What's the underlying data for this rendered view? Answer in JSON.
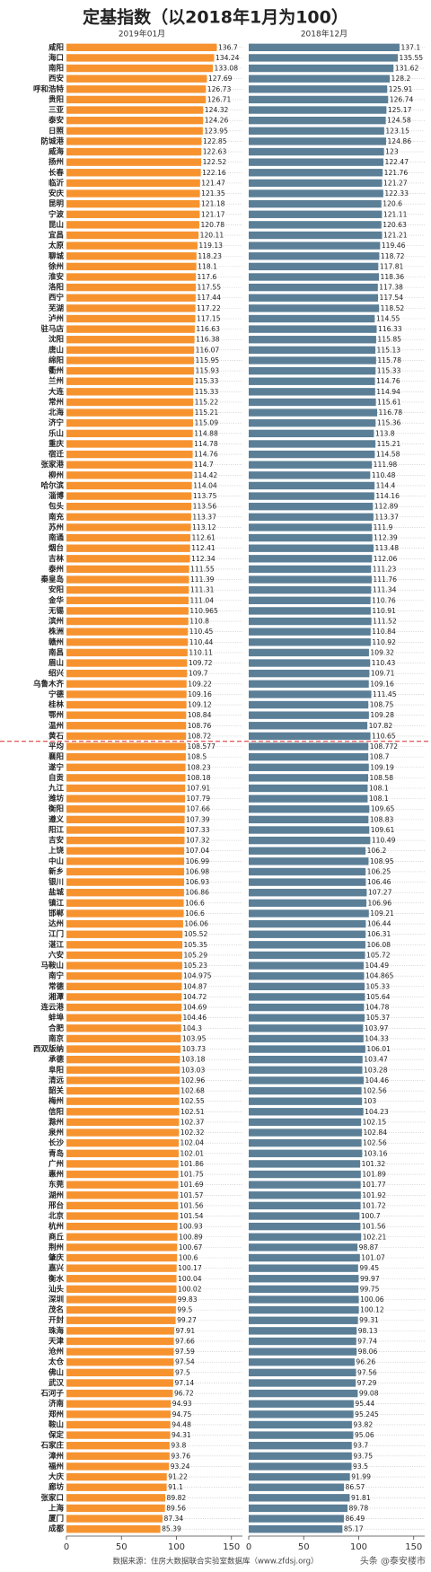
{
  "chart_data": {
    "type": "bar",
    "orientation": "horizontal",
    "title": "定基指数（以2018年1月为100）",
    "source": "数据来源：住房大数据联合实验室数据库（www.zfdsj.org）",
    "watermark": "头条 @泰安楼市",
    "highlight_category": "平均",
    "xlim": [
      0,
      160
    ],
    "xticks": [
      0,
      50,
      100,
      150
    ],
    "categories": [
      "咸阳",
      "海口",
      "南阳",
      "西安",
      "呼和浩特",
      "贵阳",
      "三亚",
      "泰安",
      "日照",
      "防城港",
      "威海",
      "扬州",
      "长春",
      "临沂",
      "安庆",
      "昆明",
      "宁波",
      "昆山",
      "宜昌",
      "太原",
      "聊城",
      "徐州",
      "淮安",
      "洛阳",
      "西宁",
      "芜湖",
      "泸州",
      "驻马店",
      "沈阳",
      "唐山",
      "绵阳",
      "衢州",
      "兰州",
      "大连",
      "常州",
      "北海",
      "济宁",
      "乐山",
      "重庆",
      "宿迁",
      "张家港",
      "柳州",
      "哈尔滨",
      "淄博",
      "包头",
      "南充",
      "苏州",
      "南通",
      "烟台",
      "吉林",
      "泰州",
      "秦皇岛",
      "安阳",
      "金华",
      "无锡",
      "滨州",
      "株洲",
      "赣州",
      "南昌",
      "眉山",
      "绍兴",
      "乌鲁木齐",
      "宁德",
      "桂林",
      "鄂州",
      "温州",
      "黄石",
      "平均",
      "襄阳",
      "遂宁",
      "自贡",
      "九江",
      "潍坊",
      "衡阳",
      "遵义",
      "阳江",
      "吉安",
      "上饶",
      "中山",
      "新乡",
      "银川",
      "盐城",
      "镇江",
      "邯郸",
      "达州",
      "江门",
      "湛江",
      "六安",
      "马鞍山",
      "南宁",
      "常德",
      "湘潭",
      "连云港",
      "蚌埠",
      "合肥",
      "南京",
      "西双版纳",
      "承德",
      "阜阳",
      "清远",
      "韶关",
      "梅州",
      "信阳",
      "滁州",
      "泉州",
      "长沙",
      "青岛",
      "广州",
      "惠州",
      "东莞",
      "湖州",
      "邢台",
      "北京",
      "杭州",
      "商丘",
      "荆州",
      "肇庆",
      "嘉兴",
      "衡水",
      "汕头",
      "深圳",
      "茂名",
      "开封",
      "珠海",
      "天津",
      "沧州",
      "太仓",
      "佛山",
      "武汉",
      "石河子",
      "济南",
      "郑州",
      "鞍山",
      "保定",
      "石家庄",
      "漳州",
      "福州",
      "大庆",
      "廊坊",
      "张家口",
      "上海",
      "厦门",
      "成都"
    ],
    "series": [
      {
        "name": "2019年01月",
        "color": "#f7932f",
        "values": [
          136.7,
          134.24,
          133.08,
          127.69,
          126.73,
          126.71,
          124.32,
          124.26,
          123.95,
          122.85,
          122.63,
          122.52,
          122.16,
          121.47,
          121.35,
          121.18,
          121.17,
          120.78,
          120.11,
          119.13,
          118.23,
          118.1,
          117.6,
          117.55,
          117.44,
          117.22,
          117.15,
          116.63,
          116.38,
          116.07,
          115.95,
          115.93,
          115.33,
          115.33,
          115.22,
          115.21,
          115.09,
          114.88,
          114.78,
          114.76,
          114.7,
          114.42,
          114.04,
          113.75,
          113.56,
          113.37,
          113.12,
          112.61,
          112.41,
          112.34,
          111.55,
          111.39,
          111.31,
          111.04,
          110.965,
          110.8,
          110.45,
          110.44,
          110.11,
          109.72,
          109.7,
          109.22,
          109.16,
          109.12,
          108.84,
          108.76,
          108.72,
          108.577,
          108.5,
          108.23,
          108.18,
          107.91,
          107.79,
          107.66,
          107.39,
          107.33,
          107.32,
          107.04,
          106.99,
          106.98,
          106.93,
          106.86,
          106.6,
          106.6,
          106.06,
          105.52,
          105.35,
          105.29,
          105.23,
          104.975,
          104.87,
          104.72,
          104.69,
          104.46,
          104.3,
          103.95,
          103.73,
          103.18,
          103.03,
          102.96,
          102.68,
          102.55,
          102.51,
          102.37,
          102.32,
          102.04,
          102.01,
          101.86,
          101.75,
          101.69,
          101.57,
          101.56,
          101.54,
          100.93,
          100.89,
          100.67,
          100.6,
          100.17,
          100.04,
          100.02,
          99.83,
          99.5,
          99.27,
          97.91,
          97.66,
          97.59,
          97.54,
          97.5,
          97.14,
          96.72,
          94.93,
          94.75,
          94.48,
          94.31,
          93.8,
          93.76,
          93.24,
          91.22,
          91.1,
          89.82,
          89.56,
          87.34,
          85.39
        ]
      },
      {
        "name": "2018年12月",
        "color": "#5b7f97",
        "values": [
          137.1,
          135.55,
          131.62,
          128.2,
          125.91,
          126.74,
          125.17,
          124.58,
          123.15,
          124.86,
          123,
          122.47,
          121.76,
          121.27,
          122.33,
          120.6,
          121.11,
          120.63,
          121.21,
          119.46,
          118.72,
          117.81,
          118.36,
          117.38,
          117.54,
          118.52,
          114.55,
          116.33,
          115.85,
          115.13,
          115.78,
          115.33,
          114.76,
          114.94,
          115.61,
          116.78,
          115.36,
          113.8,
          115.21,
          114.58,
          111.98,
          110.48,
          114.4,
          114.16,
          112.89,
          113.37,
          111.9,
          112.39,
          113.48,
          112.06,
          111.23,
          111.76,
          111.34,
          110.76,
          110.91,
          111.52,
          110.84,
          110.92,
          109.32,
          110.43,
          109.71,
          109.16,
          111.45,
          108.75,
          109.28,
          107.82,
          110.65,
          108.772,
          108.7,
          109.19,
          108.58,
          108.1,
          108.1,
          109.65,
          108.83,
          109.61,
          110.49,
          106.2,
          108.95,
          106.25,
          106.46,
          107.27,
          106.96,
          109.21,
          106.44,
          106.31,
          106.08,
          105.72,
          104.49,
          104.865,
          105.33,
          105.64,
          104.78,
          105.37,
          103.97,
          104.33,
          106.01,
          103.47,
          103.28,
          104.46,
          102.56,
          103,
          104.23,
          102.15,
          102.84,
          102.56,
          103.16,
          101.32,
          101.89,
          101.77,
          101.92,
          101.72,
          100.7,
          101.56,
          102.21,
          98.87,
          101.07,
          99.45,
          99.97,
          99.75,
          100.06,
          100.12,
          99.31,
          98.13,
          97.74,
          98.06,
          96.26,
          97.56,
          97.29,
          99.08,
          95.44,
          95.245,
          93.82,
          95.06,
          93.7,
          93.75,
          93.5,
          91.99,
          86.57,
          91.81,
          89.78,
          86.49,
          85.17
        ]
      }
    ]
  }
}
